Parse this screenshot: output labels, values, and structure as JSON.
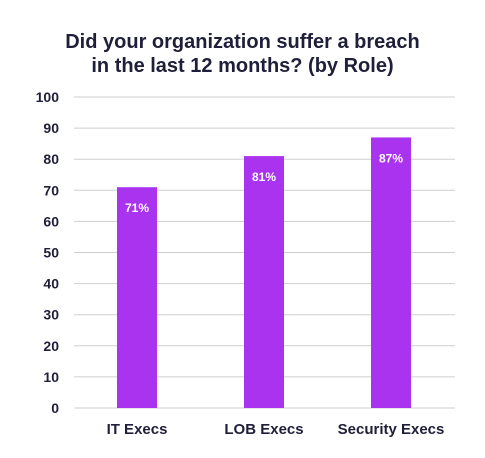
{
  "chart_data": {
    "type": "bar",
    "title_lines": [
      "Did your organization suffer a breach",
      "in the last 12 months? (by Role)"
    ],
    "categories": [
      "IT Execs",
      "LOB Execs",
      "Security Execs"
    ],
    "values": [
      71,
      81,
      87
    ],
    "data_labels": [
      "71%",
      "81%",
      "87%"
    ],
    "ylim": [
      0,
      100
    ],
    "yticks": [
      0,
      10,
      20,
      30,
      40,
      50,
      60,
      70,
      80,
      90,
      100
    ],
    "grid": true,
    "bar_color": "#aa33f0",
    "legend": "none"
  }
}
